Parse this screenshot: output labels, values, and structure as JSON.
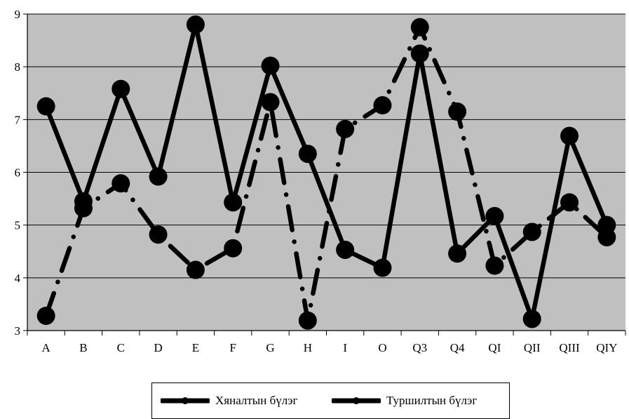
{
  "chart_data": {
    "type": "line",
    "categories": [
      "A",
      "B",
      "C",
      "D",
      "E",
      "F",
      "G",
      "H",
      "I",
      "O",
      "Q3",
      "Q4",
      "QI",
      "QII",
      "QIII",
      "QIY"
    ],
    "ylim": [
      3,
      9
    ],
    "yticks": [
      "3",
      "4",
      "5",
      "6",
      "7",
      "8",
      "9"
    ],
    "grid": true,
    "plot_background": "#c0c0c0",
    "line_color": "#000000",
    "legend_position": "bottom",
    "series": [
      {
        "name": "Хяналтын бүлэг",
        "style": "solid",
        "values": [
          7.25,
          5.45,
          7.58,
          5.92,
          8.8,
          5.43,
          8.02,
          6.35,
          4.53,
          4.19,
          8.25,
          4.46,
          5.17,
          3.22,
          6.69,
          5.0
        ]
      },
      {
        "name": "Туршилтын бүлэг",
        "style": "dash-dot",
        "values": [
          3.28,
          5.32,
          5.79,
          4.82,
          4.15,
          4.56,
          7.33,
          3.19,
          6.82,
          7.27,
          8.75,
          7.15,
          4.23,
          4.87,
          5.43,
          4.77
        ]
      }
    ]
  }
}
